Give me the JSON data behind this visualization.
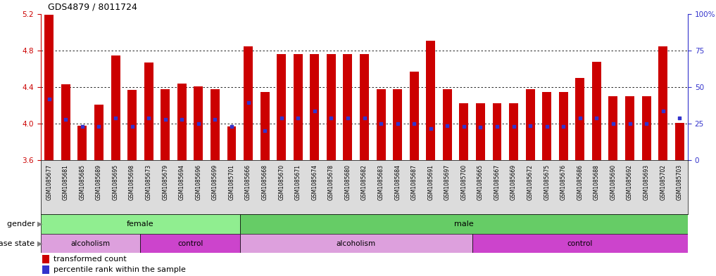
{
  "title": "GDS4879 / 8011724",
  "samples": [
    "GSM1085677",
    "GSM1085681",
    "GSM1085685",
    "GSM1085689",
    "GSM1085695",
    "GSM1085698",
    "GSM1085673",
    "GSM1085679",
    "GSM1085694",
    "GSM1085696",
    "GSM1085699",
    "GSM1085701",
    "GSM1085666",
    "GSM1085668",
    "GSM1085670",
    "GSM1085671",
    "GSM1085674",
    "GSM1085678",
    "GSM1085680",
    "GSM1085682",
    "GSM1085683",
    "GSM1085684",
    "GSM1085687",
    "GSM1085691",
    "GSM1085697",
    "GSM1085700",
    "GSM1085665",
    "GSM1085667",
    "GSM1085669",
    "GSM1085672",
    "GSM1085675",
    "GSM1085676",
    "GSM1085686",
    "GSM1085688",
    "GSM1085690",
    "GSM1085692",
    "GSM1085693",
    "GSM1085702",
    "GSM1085703"
  ],
  "bar_values": [
    5.19,
    4.43,
    3.98,
    4.21,
    4.75,
    4.37,
    4.67,
    4.38,
    4.44,
    4.41,
    4.38,
    3.97,
    4.85,
    4.35,
    4.76,
    4.76,
    4.76,
    4.76,
    4.76,
    4.76,
    4.38,
    4.38,
    4.57,
    4.91,
    4.38,
    4.22,
    4.22,
    4.22,
    4.22,
    4.38,
    4.35,
    4.35,
    4.5,
    4.68,
    4.3,
    4.3,
    4.3,
    4.85,
    4.01
  ],
  "blue_dot_values": [
    4.27,
    4.05,
    3.97,
    3.97,
    4.06,
    3.97,
    4.06,
    4.05,
    4.05,
    4.0,
    4.05,
    3.97,
    4.23,
    3.92,
    4.06,
    4.06,
    4.14,
    4.06,
    4.06,
    4.06,
    4.0,
    4.0,
    4.0,
    3.95,
    3.98,
    3.97,
    3.96,
    3.97,
    3.97,
    3.98,
    3.97,
    3.97,
    4.06,
    4.06,
    4.0,
    4.0,
    4.0,
    4.14,
    4.06
  ],
  "ylim_left": [
    3.6,
    5.2
  ],
  "yticks_left": [
    3.6,
    4.0,
    4.4,
    4.8,
    5.2
  ],
  "yticks_right": [
    0,
    25,
    50,
    75,
    100
  ],
  "ytick_right_labels": [
    "0",
    "25",
    "50",
    "75",
    "100%"
  ],
  "bar_color": "#CC0000",
  "dot_color": "#3333CC",
  "left_tick_color": "#CC0000",
  "right_tick_color": "#3333CC",
  "grid_color": "#000000",
  "bg_color": "#FFFFFF",
  "gender_female_color": "#90EE90",
  "gender_male_color": "#66CC66",
  "disease_alcoholism_color": "#DDA0DD",
  "disease_control_color": "#CC44CC",
  "disease_groups": [
    {
      "label": "alcoholism",
      "start": 0,
      "end": 6
    },
    {
      "label": "control",
      "start": 6,
      "end": 12
    },
    {
      "label": "alcoholism",
      "start": 12,
      "end": 26
    },
    {
      "label": "control",
      "start": 26,
      "end": 39
    }
  ],
  "legend_items": [
    {
      "color": "#CC0000",
      "label": "transformed count"
    },
    {
      "color": "#3333CC",
      "label": "percentile rank within the sample"
    }
  ],
  "n_female": 12,
  "n_total": 39
}
